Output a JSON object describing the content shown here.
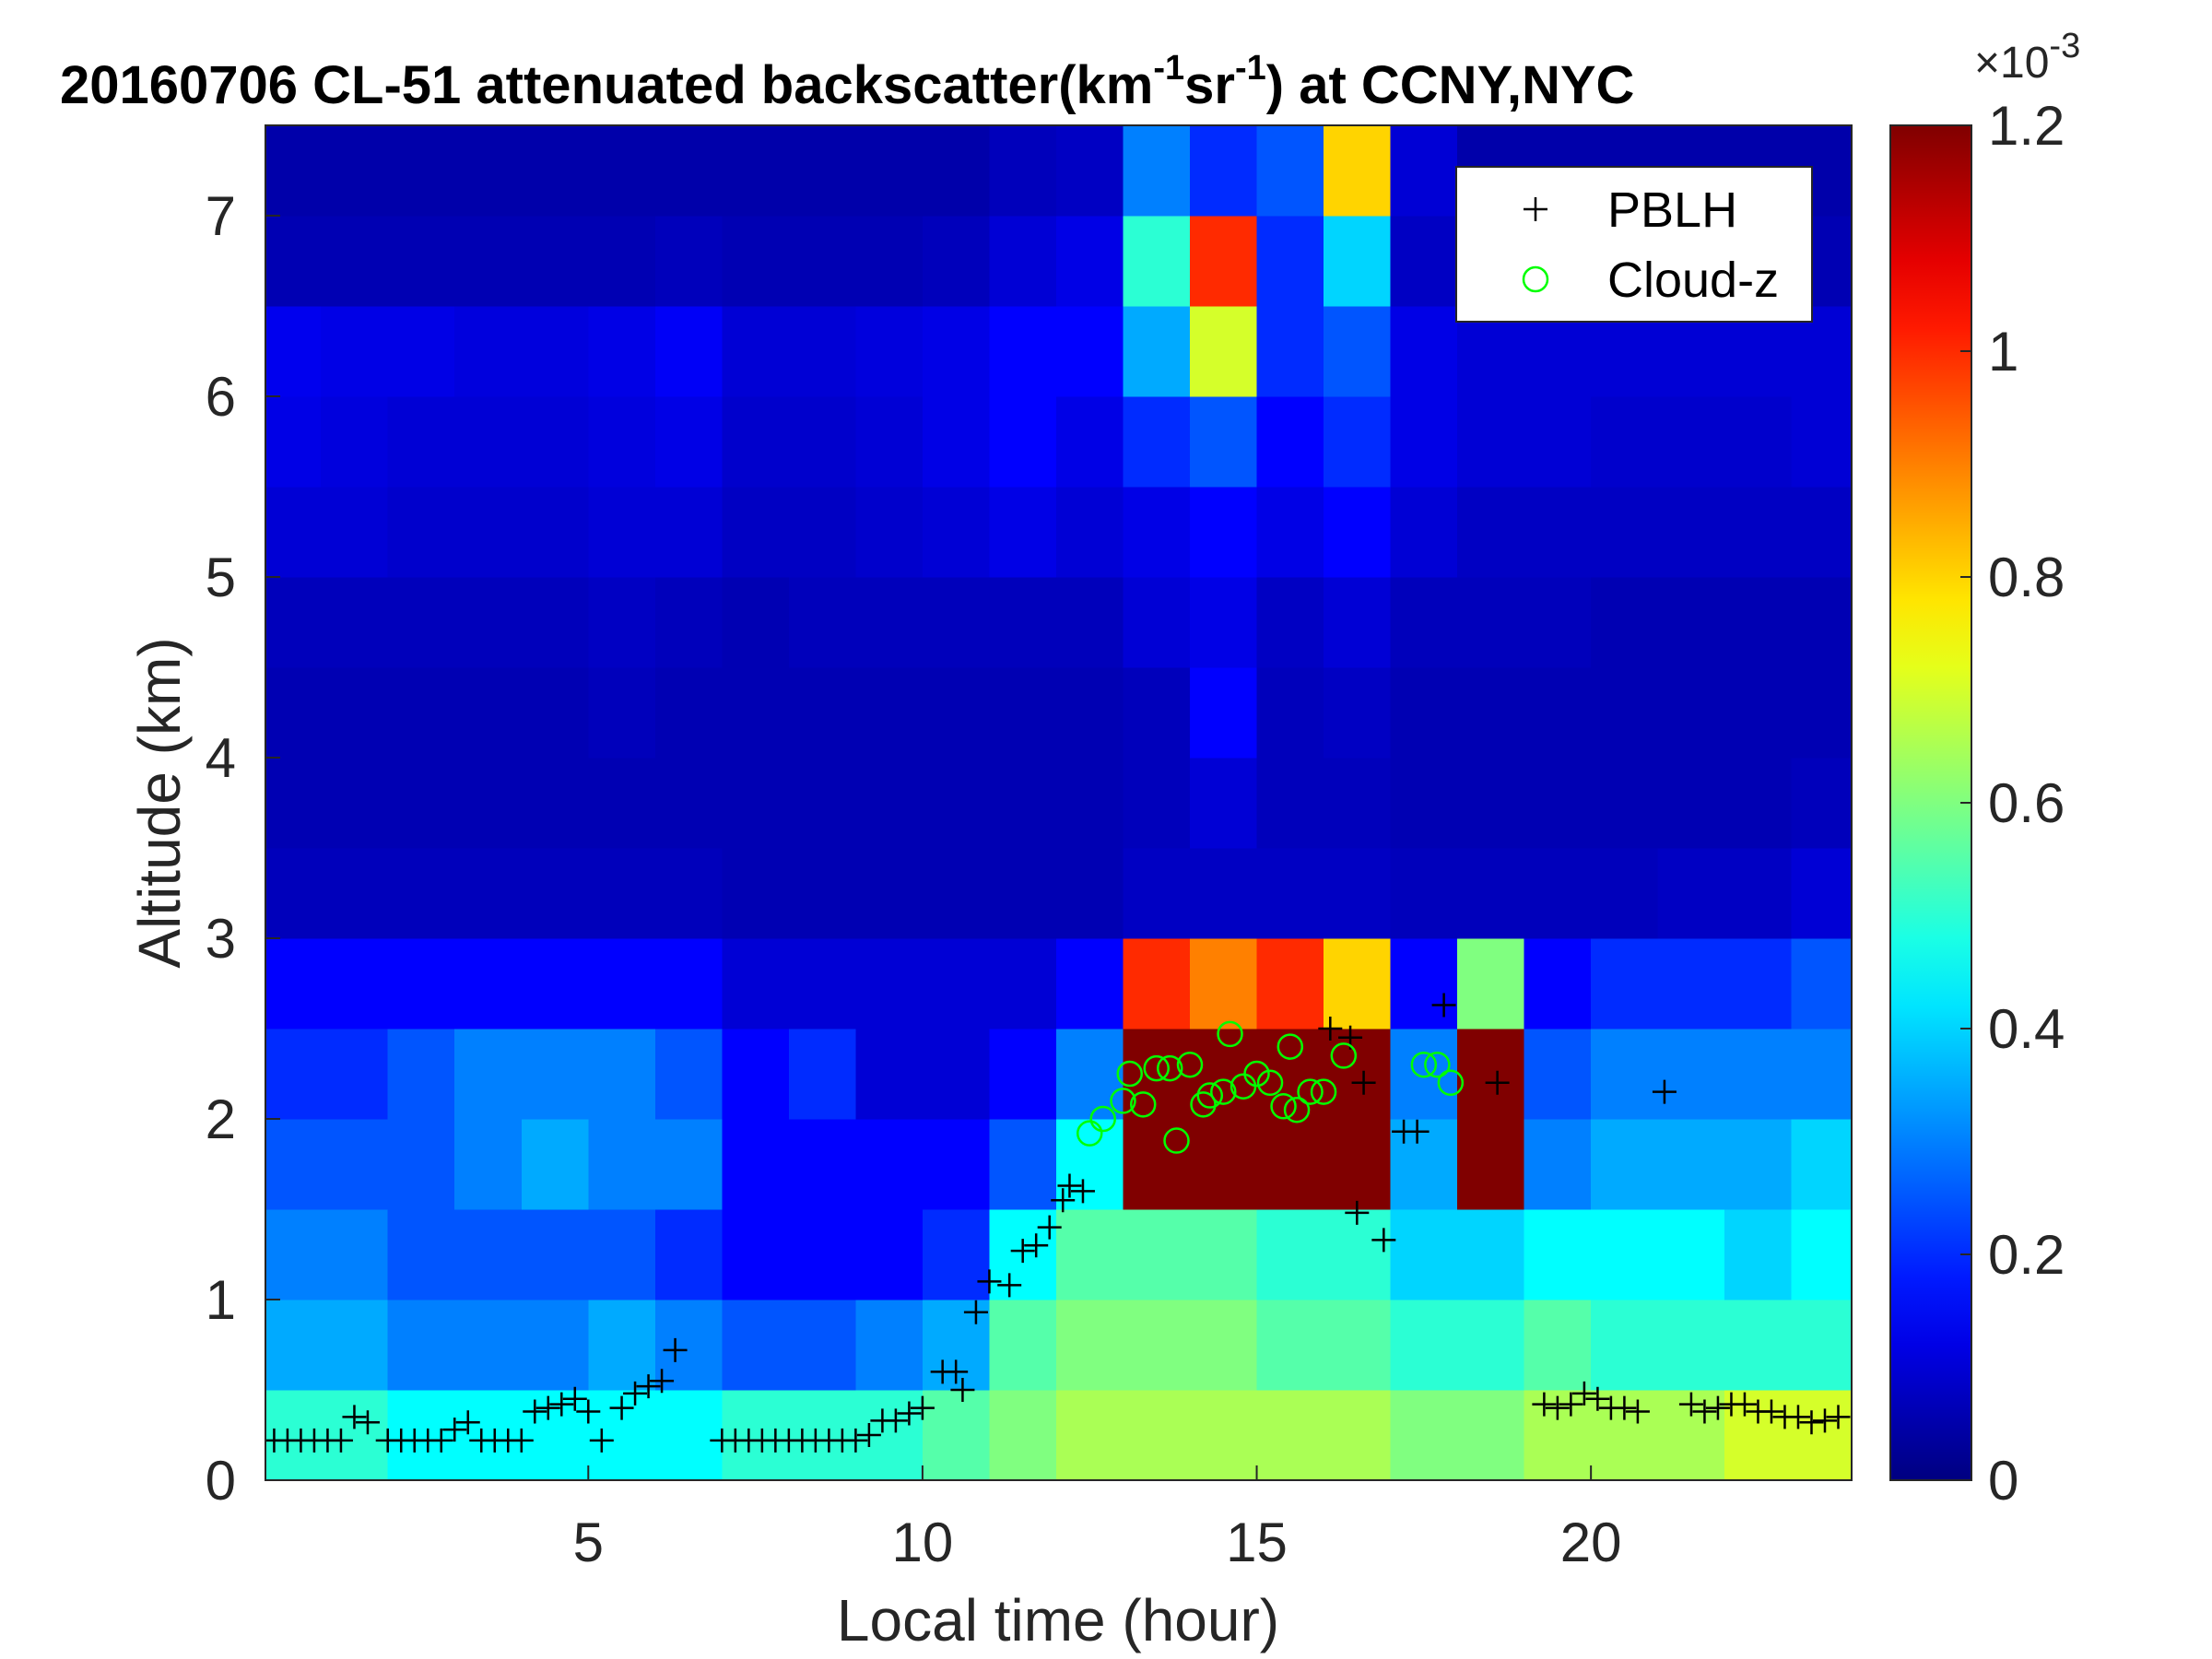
{
  "chart_data": {
    "type": "heatmap",
    "title_parts": [
      "20160706  CL-51 attenuated backscatter(km",
      "-1",
      "sr",
      "-1",
      ") at CCNY,NYC"
    ],
    "xlabel": "Local time (hour)",
    "ylabel": "Altitude (km)",
    "xlim": [
      0.17,
      23.9
    ],
    "ylim": [
      0,
      7.5
    ],
    "xticks": [
      5,
      10,
      15,
      20
    ],
    "yticks": [
      0,
      1,
      2,
      3,
      4,
      5,
      6,
      7
    ],
    "colormap": "jet",
    "clim": [
      0,
      1.2
    ],
    "cticks": [
      0,
      0.2,
      0.4,
      0.6,
      0.8,
      1,
      1.2
    ],
    "colorbar_label": [
      "×10",
      "-3"
    ],
    "legend": "northeast",
    "heatmap": {
      "xbins": [
        0,
        1,
        2,
        3,
        4,
        5,
        6,
        7,
        8,
        9,
        10,
        11,
        12,
        13,
        14,
        15,
        16,
        17,
        18,
        19,
        20,
        21,
        22,
        23,
        24
      ],
      "ybins": [
        0,
        0.5,
        1,
        1.5,
        2,
        2.5,
        3,
        3.5,
        4,
        4.5,
        5,
        5.5,
        6,
        6.5,
        7,
        7.5
      ],
      "values": [
        [
          0.5,
          0.5,
          0.45,
          0.45,
          0.45,
          0.45,
          0.45,
          0.5,
          0.5,
          0.5,
          0.55,
          0.6,
          0.65,
          0.65,
          0.65,
          0.65,
          0.65,
          0.6,
          0.6,
          0.65,
          0.65,
          0.65,
          0.7,
          0.7
        ],
        [
          0.35,
          0.35,
          0.3,
          0.3,
          0.3,
          0.35,
          0.3,
          0.25,
          0.25,
          0.3,
          0.35,
          0.55,
          0.6,
          0.6,
          0.6,
          0.55,
          0.55,
          0.5,
          0.5,
          0.55,
          0.5,
          0.5,
          0.5,
          0.5
        ],
        [
          0.3,
          0.3,
          0.25,
          0.25,
          0.25,
          0.25,
          0.2,
          0.15,
          0.15,
          0.15,
          0.2,
          0.45,
          0.55,
          0.55,
          0.55,
          0.5,
          0.5,
          0.4,
          0.4,
          0.45,
          0.45,
          0.45,
          0.4,
          0.45
        ],
        [
          0.25,
          0.25,
          0.25,
          0.3,
          0.35,
          0.3,
          0.3,
          0.15,
          0.15,
          0.15,
          0.15,
          0.25,
          0.45,
          1.2,
          1.2,
          1.2,
          1.2,
          0.35,
          1.2,
          0.3,
          0.35,
          0.35,
          0.35,
          0.4
        ],
        [
          0.2,
          0.2,
          0.25,
          0.3,
          0.3,
          0.3,
          0.25,
          0.15,
          0.2,
          0.1,
          0.1,
          0.15,
          0.3,
          1.2,
          1.2,
          1.2,
          1.2,
          0.3,
          1.2,
          0.25,
          0.3,
          0.3,
          0.3,
          0.3
        ],
        [
          0.15,
          0.15,
          0.15,
          0.15,
          0.15,
          0.15,
          0.15,
          0.1,
          0.1,
          0.1,
          0.1,
          0.1,
          0.15,
          1,
          0.9,
          1,
          0.8,
          0.15,
          0.6,
          0.15,
          0.2,
          0.2,
          0.2,
          0.25
        ],
        [
          0.07,
          0.07,
          0.07,
          0.07,
          0.07,
          0.07,
          0.07,
          0.06,
          0.06,
          0.06,
          0.06,
          0.06,
          0.06,
          0.08,
          0.08,
          0.08,
          0.08,
          0.07,
          0.07,
          0.07,
          0.07,
          0.08,
          0.08,
          0.1
        ],
        [
          0.06,
          0.06,
          0.06,
          0.06,
          0.06,
          0.06,
          0.06,
          0.06,
          0.06,
          0.06,
          0.06,
          0.06,
          0.06,
          0.07,
          0.1,
          0.07,
          0.07,
          0.06,
          0.06,
          0.06,
          0.06,
          0.06,
          0.06,
          0.07
        ],
        [
          0.06,
          0.06,
          0.06,
          0.06,
          0.06,
          0.07,
          0.06,
          0.06,
          0.06,
          0.06,
          0.06,
          0.06,
          0.06,
          0.07,
          0.15,
          0.07,
          0.08,
          0.06,
          0.06,
          0.06,
          0.06,
          0.06,
          0.06,
          0.06
        ],
        [
          0.07,
          0.07,
          0.07,
          0.07,
          0.07,
          0.08,
          0.07,
          0.06,
          0.07,
          0.07,
          0.07,
          0.07,
          0.07,
          0.1,
          0.12,
          0.08,
          0.1,
          0.07,
          0.07,
          0.07,
          0.06,
          0.06,
          0.06,
          0.06
        ],
        [
          0.1,
          0.1,
          0.09,
          0.09,
          0.09,
          0.1,
          0.1,
          0.08,
          0.08,
          0.09,
          0.1,
          0.12,
          0.1,
          0.12,
          0.15,
          0.12,
          0.15,
          0.1,
          0.08,
          0.08,
          0.08,
          0.08,
          0.08,
          0.08
        ],
        [
          0.12,
          0.11,
          0.1,
          0.1,
          0.1,
          0.11,
          0.12,
          0.09,
          0.09,
          0.1,
          0.12,
          0.15,
          0.12,
          0.2,
          0.25,
          0.15,
          0.2,
          0.12,
          0.1,
          0.1,
          0.09,
          0.09,
          0.09,
          0.1
        ],
        [
          0.13,
          0.12,
          0.12,
          0.11,
          0.11,
          0.12,
          0.14,
          0.1,
          0.1,
          0.11,
          0.12,
          0.15,
          0.15,
          0.35,
          0.7,
          0.2,
          0.25,
          0.12,
          0.1,
          0.1,
          0.1,
          0.1,
          0.1,
          0.1
        ],
        [
          0.06,
          0.06,
          0.06,
          0.06,
          0.06,
          0.06,
          0.07,
          0.06,
          0.06,
          0.06,
          0.07,
          0.1,
          0.12,
          0.5,
          1,
          0.2,
          0.4,
          0.08,
          0.06,
          0.06,
          0.06,
          0.06,
          0.06,
          0.06
        ],
        [
          0.05,
          0.05,
          0.05,
          0.05,
          0.05,
          0.05,
          0.05,
          0.05,
          0.05,
          0.05,
          0.05,
          0.07,
          0.08,
          0.3,
          0.2,
          0.25,
          0.8,
          0.1,
          0.05,
          0.05,
          0.05,
          0.05,
          0.05,
          0.05
        ]
      ]
    },
    "series": [
      {
        "name": "PBLH",
        "color": "#000000",
        "marker": "+",
        "x": [
          0.3,
          0.5,
          0.7,
          0.9,
          1.1,
          1.3,
          1.5,
          1.7,
          2.0,
          2.2,
          2.4,
          2.6,
          2.8,
          3.0,
          3.2,
          3.4,
          3.6,
          3.8,
          4.0,
          4.2,
          4.4,
          4.6,
          4.8,
          5.0,
          5.2,
          5.5,
          5.7,
          5.9,
          6.1,
          6.3,
          7.0,
          7.2,
          7.4,
          7.6,
          7.8,
          8.0,
          8.2,
          8.4,
          8.6,
          8.8,
          9.0,
          9.2,
          9.4,
          9.6,
          9.8,
          10.0,
          10.3,
          10.5,
          10.6,
          10.8,
          11.0,
          11.3,
          11.5,
          11.7,
          11.9,
          12.1,
          12.2,
          12.4,
          16.1,
          16.4,
          16.6,
          16.5,
          16.9,
          17.2,
          17.4,
          17.8,
          18.6,
          19.3,
          19.5,
          19.7,
          19.9,
          20.1,
          20.3,
          20.5,
          20.7,
          21.1,
          21.5,
          21.7,
          21.9,
          22.1,
          22.3,
          22.5,
          22.7,
          22.9,
          23.1,
          23.3,
          23.5,
          23.7
        ],
        "y": [
          0.22,
          0.22,
          0.22,
          0.22,
          0.22,
          0.22,
          0.35,
          0.32,
          0.22,
          0.22,
          0.22,
          0.22,
          0.22,
          0.28,
          0.32,
          0.22,
          0.22,
          0.22,
          0.22,
          0.38,
          0.4,
          0.42,
          0.45,
          0.38,
          0.22,
          0.4,
          0.48,
          0.52,
          0.55,
          0.72,
          0.22,
          0.22,
          0.22,
          0.22,
          0.22,
          0.22,
          0.22,
          0.22,
          0.22,
          0.22,
          0.22,
          0.25,
          0.33,
          0.33,
          0.37,
          0.4,
          0.6,
          0.6,
          0.5,
          0.93,
          1.1,
          1.08,
          1.27,
          1.3,
          1.4,
          1.55,
          1.63,
          1.6,
          2.5,
          2.45,
          2.2,
          1.48,
          1.33,
          1.93,
          1.93,
          2.63,
          2.2,
          0.42,
          0.4,
          0.42,
          0.48,
          0.45,
          0.4,
          0.4,
          0.38,
          2.15,
          0.42,
          0.38,
          0.4,
          0.42,
          0.42,
          0.38,
          0.38,
          0.35,
          0.35,
          0.32,
          0.33,
          0.35
        ]
      },
      {
        "name": "Cloud-z",
        "color": "#00ff00",
        "marker": "o",
        "x": [
          12.5,
          12.7,
          13.0,
          13.1,
          13.3,
          13.5,
          13.7,
          13.8,
          14.0,
          14.2,
          14.3,
          14.5,
          14.6,
          14.8,
          15.0,
          15.2,
          15.4,
          15.5,
          15.6,
          15.8,
          16.0,
          16.3,
          17.5,
          17.7,
          17.9
        ],
        "y": [
          1.92,
          2.0,
          2.1,
          2.25,
          2.08,
          2.28,
          2.28,
          1.88,
          2.3,
          2.08,
          2.13,
          2.15,
          2.47,
          2.18,
          2.25,
          2.2,
          2.07,
          2.4,
          2.05,
          2.15,
          2.15,
          2.35,
          2.3,
          2.3,
          2.2
        ]
      }
    ]
  }
}
